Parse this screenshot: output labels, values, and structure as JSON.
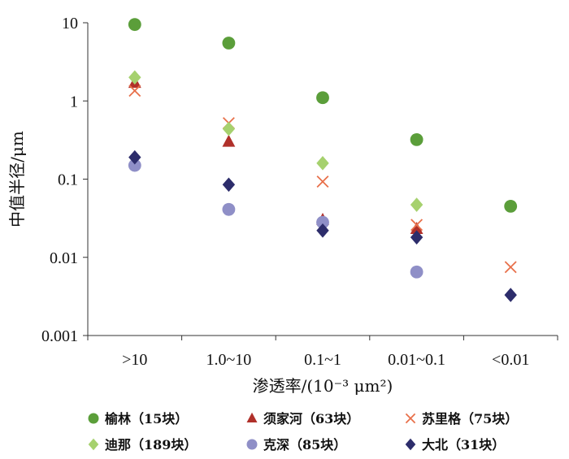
{
  "chart_data": {
    "type": "scatter",
    "scale": "log",
    "xlabel": "渗透率/(10⁻³ μm²)",
    "ylabel": "中值半径/μm",
    "ylim": [
      0.001,
      10
    ],
    "categories": [
      ">10",
      "1.0~10",
      "0.1~1",
      "0.01~0.1",
      "<0.01"
    ],
    "y_ticks": [
      "0.001",
      "0.01",
      "0.1",
      "1",
      "10"
    ],
    "grid": false,
    "legend_position": "bottom",
    "series": [
      {
        "name": "榆林（15块）",
        "marker": "circle",
        "color": "#5b9e3a",
        "values": [
          9.5,
          5.5,
          1.1,
          0.32,
          0.045
        ]
      },
      {
        "name": "须家河（63块）",
        "marker": "triangle",
        "color": "#b0302a",
        "values": [
          1.7,
          0.3,
          0.03,
          0.023,
          null
        ]
      },
      {
        "name": "苏里格（75块）",
        "marker": "x",
        "color": "#e8704a",
        "values": [
          1.35,
          0.52,
          0.093,
          0.026,
          0.0075
        ]
      },
      {
        "name": "迪那（189块）",
        "marker": "diamond",
        "color": "#a6d16e",
        "values": [
          2.0,
          0.44,
          0.16,
          0.047,
          null
        ]
      },
      {
        "name": "克深（85块）",
        "marker": "circle",
        "color": "#8f8fc7",
        "values": [
          0.15,
          0.041,
          0.028,
          0.0065,
          null
        ]
      },
      {
        "name": "大北（31块）",
        "marker": "diamond",
        "color": "#2d2d6b",
        "values": [
          0.19,
          0.085,
          0.022,
          0.018,
          0.0033
        ]
      }
    ]
  }
}
